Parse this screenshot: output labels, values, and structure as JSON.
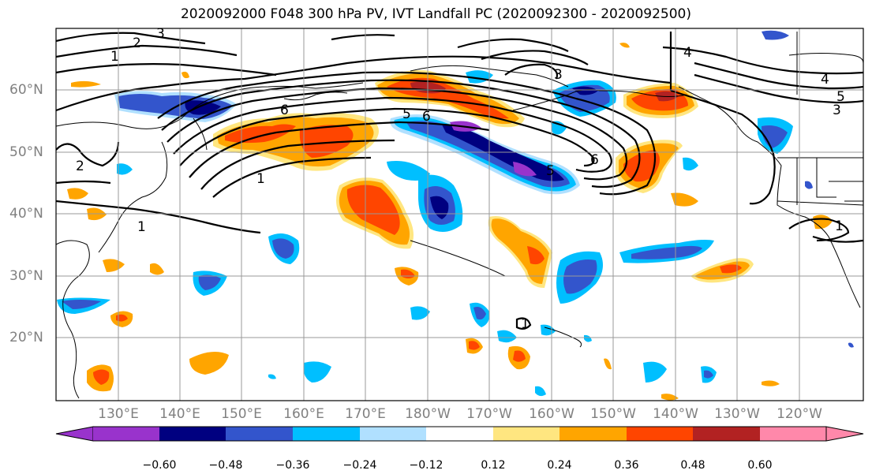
{
  "title": "2020092000 F048 300 hPa PV, IVT Landfall PC (2020092300 - 2020092500)",
  "lat_labels": [
    "60°N",
    "50°N",
    "40°N",
    "30°N",
    "20°N"
  ],
  "lon_labels": [
    "130°E",
    "140°E",
    "150°E",
    "160°E",
    "170°E",
    "180°W",
    "170°W",
    "160°W",
    "150°W",
    "140°W",
    "130°W",
    "120°W"
  ],
  "colorbar": {
    "ticks": [
      "−0.60",
      "−0.48",
      "−0.36",
      "−0.24",
      "−0.12",
      "0.12",
      "0.24",
      "0.36",
      "0.48",
      "0.60"
    ],
    "colors": [
      "#9933cc",
      "#000080",
      "#3355cc",
      "#00bfff",
      "#b0e0ff",
      "#ffffff",
      "#ffe680",
      "#ffa500",
      "#ff4500",
      "#b22222",
      "#ff88aa"
    ]
  },
  "contour_labels": [
    "1",
    "2",
    "3",
    "1",
    "2",
    "1",
    "1",
    "3",
    "4",
    "4",
    "5",
    "5",
    "3",
    "6",
    "6",
    "6",
    "5",
    "1"
  ]
}
